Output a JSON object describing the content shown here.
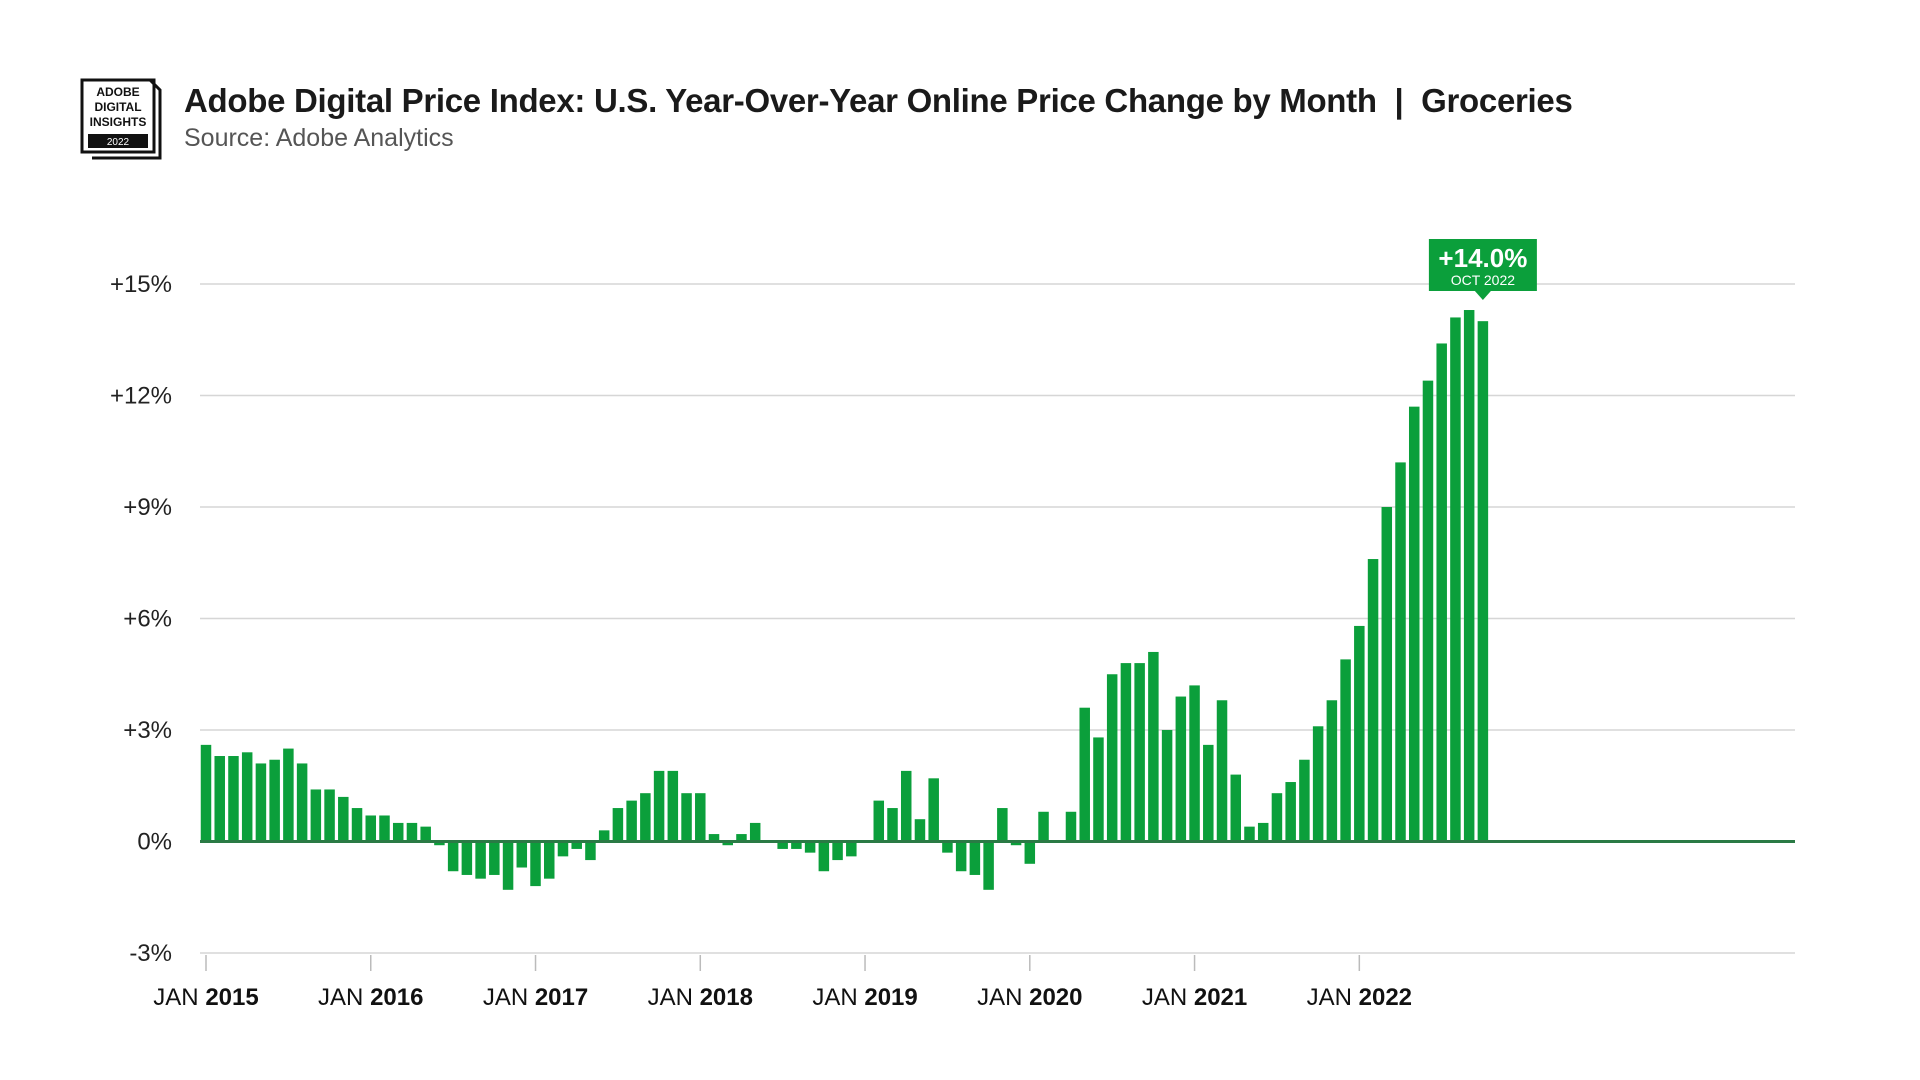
{
  "header": {
    "logo_line1": "ADOBE",
    "logo_line2": "DIGITAL",
    "logo_line3": "INSIGHTS",
    "logo_year": "2022",
    "title": "Adobe Digital Price Index: U.S. Year-Over-Year Online Price Change by Month  |  Groceries",
    "subtitle": "Source: Adobe Analytics"
  },
  "colors": {
    "bar": "#0b9f3b",
    "zero_line": "#2a7a45",
    "grid": "#d6d6d6",
    "callout_bg": "#0b9f3b",
    "callout_text": "#ffffff"
  },
  "chart_data": {
    "type": "bar",
    "title": "Adobe Digital Price Index: U.S. Year-Over-Year Online Price Change by Month  |  Groceries",
    "xlabel": "",
    "ylabel": "",
    "ylim": [
      -3,
      15
    ],
    "yticks": [
      {
        "value": 15,
        "label": "+15%"
      },
      {
        "value": 12,
        "label": "+12%"
      },
      {
        "value": 9,
        "label": "+9%"
      },
      {
        "value": 6,
        "label": "+6%"
      },
      {
        "value": 3,
        "label": "+3%"
      },
      {
        "value": 0,
        "label": "0%"
      },
      {
        "value": -3,
        "label": "-3%"
      }
    ],
    "xticks": [
      {
        "index": 0,
        "prefix": "JAN ",
        "year": "2015"
      },
      {
        "index": 12,
        "prefix": "JAN ",
        "year": "2016"
      },
      {
        "index": 24,
        "prefix": "JAN ",
        "year": "2017"
      },
      {
        "index": 36,
        "prefix": "JAN ",
        "year": "2018"
      },
      {
        "index": 48,
        "prefix": "JAN ",
        "year": "2019"
      },
      {
        "index": 60,
        "prefix": "JAN ",
        "year": "2020"
      },
      {
        "index": 72,
        "prefix": "JAN ",
        "year": "2021"
      },
      {
        "index": 84,
        "prefix": "JAN ",
        "year": "2022"
      }
    ],
    "grid": true,
    "start": "2015-01",
    "end": "2022-10",
    "values": [
      2.6,
      2.3,
      2.3,
      2.4,
      2.1,
      2.2,
      2.5,
      2.1,
      1.4,
      1.4,
      1.2,
      0.9,
      0.7,
      0.7,
      0.5,
      0.5,
      0.4,
      -0.1,
      -0.8,
      -0.9,
      -1.0,
      -0.9,
      -1.3,
      -0.7,
      -1.2,
      -1.0,
      -0.4,
      -0.2,
      -0.5,
      0.3,
      0.9,
      1.1,
      1.3,
      1.9,
      1.9,
      1.3,
      1.3,
      0.2,
      -0.1,
      0.2,
      0.5,
      0.0,
      -0.2,
      -0.2,
      -0.3,
      -0.8,
      -0.5,
      -0.4,
      0.0,
      1.1,
      0.9,
      1.9,
      0.6,
      1.7,
      -0.3,
      -0.8,
      -0.9,
      -1.3,
      0.9,
      -0.1,
      -0.6,
      0.8,
      0.0,
      0.8,
      3.6,
      2.8,
      4.5,
      4.8,
      4.8,
      5.1,
      3.0,
      3.9,
      4.2,
      2.6,
      3.8,
      1.8,
      0.4,
      0.5,
      1.3,
      1.6,
      2.2,
      3.1,
      3.8,
      4.9,
      5.8,
      7.6,
      9.0,
      10.2,
      11.7,
      12.4,
      13.4,
      14.1,
      14.3,
      14.0
    ],
    "annotation": {
      "index": 93,
      "value_label": "+14.0%",
      "date_label": "OCT 2022"
    }
  }
}
